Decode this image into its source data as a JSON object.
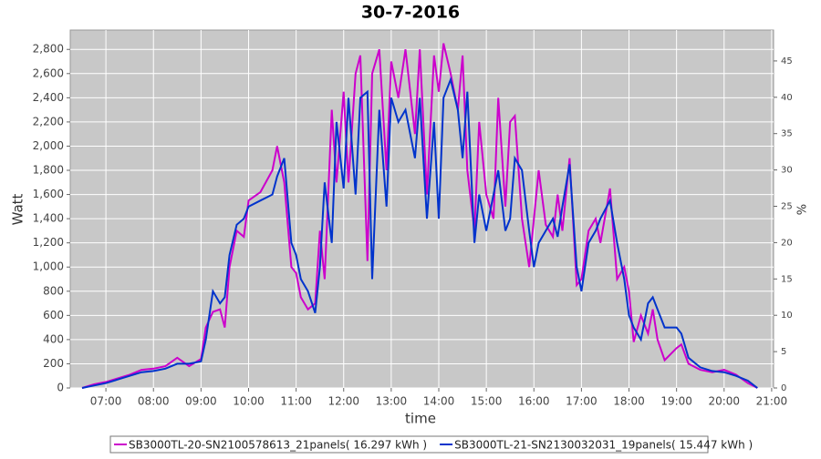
{
  "chart_data": {
    "type": "line",
    "title": "30-7-2016",
    "x_label": "time",
    "y_label": "Watt",
    "y2_label": "%",
    "x": [
      6.5,
      6.75,
      7.0,
      7.25,
      7.5,
      7.75,
      8.0,
      8.25,
      8.5,
      8.75,
      9.0,
      9.1,
      9.25,
      9.4,
      9.5,
      9.6,
      9.75,
      9.9,
      10.0,
      10.25,
      10.5,
      10.6,
      10.75,
      10.9,
      11.0,
      11.1,
      11.25,
      11.4,
      11.5,
      11.6,
      11.75,
      11.85,
      12.0,
      12.1,
      12.25,
      12.35,
      12.5,
      12.6,
      12.75,
      12.9,
      13.0,
      13.15,
      13.3,
      13.5,
      13.6,
      13.75,
      13.9,
      14.0,
      14.1,
      14.25,
      14.4,
      14.5,
      14.6,
      14.75,
      14.85,
      15.0,
      15.15,
      15.25,
      15.4,
      15.5,
      15.6,
      15.75,
      15.9,
      16.0,
      16.1,
      16.25,
      16.4,
      16.5,
      16.6,
      16.75,
      16.9,
      17.0,
      17.15,
      17.3,
      17.4,
      17.6,
      17.75,
      17.9,
      18.0,
      18.1,
      18.25,
      18.4,
      18.5,
      18.6,
      18.75,
      19.0,
      19.1,
      19.25,
      19.5,
      19.75,
      20.0,
      20.25,
      20.5,
      20.7
    ],
    "series": [
      {
        "name": "SB3000TL-20-SN2100578613_21panels( 16.297 kWh )",
        "color": "#cc00cc",
        "values": [
          0,
          30,
          50,
          80,
          110,
          150,
          160,
          180,
          250,
          180,
          240,
          500,
          630,
          650,
          500,
          1000,
          1300,
          1250,
          1550,
          1620,
          1800,
          2000,
          1700,
          1000,
          950,
          750,
          650,
          700,
          1300,
          900,
          2300,
          1700,
          2450,
          1700,
          2600,
          2750,
          1050,
          2600,
          2800,
          1800,
          2700,
          2400,
          2800,
          2100,
          2800,
          1600,
          2750,
          2450,
          2850,
          2600,
          2300,
          2750,
          1800,
          1300,
          2200,
          1600,
          1400,
          2400,
          1500,
          2200,
          2250,
          1400,
          1000,
          1400,
          1800,
          1350,
          1250,
          1600,
          1300,
          1900,
          850,
          900,
          1300,
          1400,
          1200,
          1650,
          900,
          1000,
          800,
          380,
          600,
          450,
          650,
          400,
          230,
          330,
          360,
          200,
          150,
          130,
          150,
          110,
          40,
          0
        ]
      },
      {
        "name": "SB3000TL-21-SN2130032031_19panels( 15.447 kWh )",
        "color": "#0033cc",
        "values": [
          0,
          20,
          40,
          70,
          100,
          130,
          140,
          160,
          200,
          200,
          220,
          400,
          800,
          700,
          750,
          1100,
          1350,
          1400,
          1500,
          1550,
          1600,
          1750,
          1900,
          1200,
          1100,
          900,
          800,
          620,
          1000,
          1700,
          1200,
          2200,
          1650,
          2400,
          1600,
          2400,
          2450,
          900,
          2300,
          1500,
          2400,
          2200,
          2300,
          1900,
          2400,
          1400,
          2200,
          1400,
          2400,
          2550,
          2300,
          1900,
          2450,
          1200,
          1600,
          1300,
          1600,
          1800,
          1300,
          1400,
          1900,
          1800,
          1300,
          1000,
          1200,
          1300,
          1400,
          1250,
          1500,
          1850,
          1000,
          800,
          1200,
          1300,
          1400,
          1550,
          1200,
          900,
          600,
          500,
          400,
          700,
          750,
          650,
          500,
          500,
          450,
          250,
          170,
          140,
          130,
          100,
          60,
          0
        ]
      }
    ],
    "xlim": [
      6.25,
      21.04
    ],
    "xticks": [
      {
        "value": 7,
        "label": "07:00"
      },
      {
        "value": 8,
        "label": "08:00"
      },
      {
        "value": 9,
        "label": "09:00"
      },
      {
        "value": 10,
        "label": "10:00"
      },
      {
        "value": 11,
        "label": "11:00"
      },
      {
        "value": 12,
        "label": "12:00"
      },
      {
        "value": 13,
        "label": "13:00"
      },
      {
        "value": 14,
        "label": "14:00"
      },
      {
        "value": 15,
        "label": "15:00"
      },
      {
        "value": 16,
        "label": "16:00"
      },
      {
        "value": 17,
        "label": "17:00"
      },
      {
        "value": 18,
        "label": "18:00"
      },
      {
        "value": 19,
        "label": "19:00"
      },
      {
        "value": 20,
        "label": "20:00"
      },
      {
        "value": 21,
        "label": "21:00"
      }
    ],
    "ylim": [
      0,
      2960
    ],
    "yticks": [
      0,
      200,
      400,
      600,
      800,
      {
        "value": 1000,
        "label": "1,000"
      },
      {
        "value": 1200,
        "label": "1,200"
      },
      {
        "value": 1400,
        "label": "1,400"
      },
      {
        "value": 1600,
        "label": "1,600"
      },
      {
        "value": 1800,
        "label": "1,800"
      },
      {
        "value": 2000,
        "label": "2,000"
      },
      {
        "value": 2200,
        "label": "2,200"
      },
      {
        "value": 2400,
        "label": "2,400"
      },
      {
        "value": 2600,
        "label": "2,600"
      },
      {
        "value": 2800,
        "label": "2,800"
      }
    ],
    "y2lim": [
      0,
      49.25
    ],
    "y2ticks": [
      0,
      5,
      10,
      15,
      20,
      25,
      30,
      35,
      40,
      45
    ],
    "grid": true,
    "legend": "bottom"
  }
}
